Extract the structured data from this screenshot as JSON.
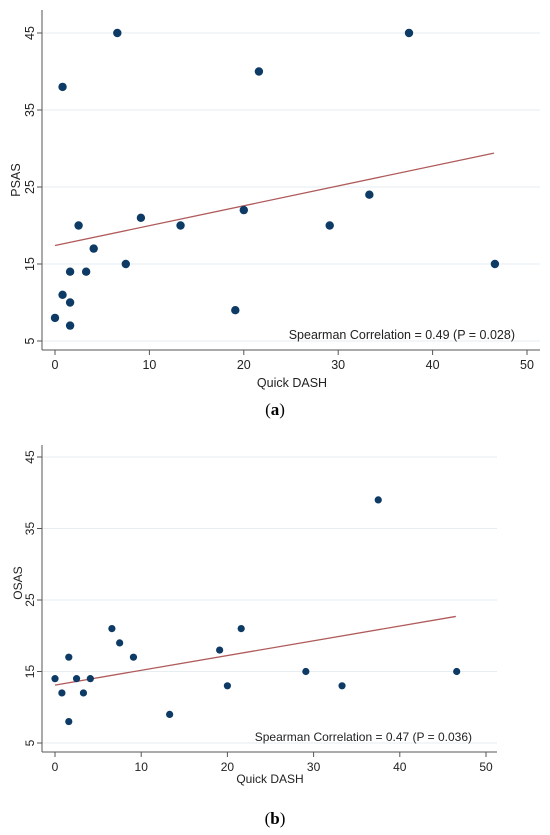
{
  "chart_data": [
    {
      "type": "scatter",
      "xlabel": "Quick DASH",
      "ylabel": "PSAS",
      "panel_label": "a",
      "annotation": "Spearman Correlation = 0.49 (P = 0.028)",
      "xlim": [
        0,
        50
      ],
      "ylim": [
        5,
        45
      ],
      "xticks": [
        "0",
        "10",
        "20",
        "30",
        "40",
        "50"
      ],
      "yticks": [
        "5",
        "15",
        "25",
        "35",
        "45"
      ],
      "grid": true,
      "colors": {
        "points": "#0d3b66",
        "fit": "#b05a5a",
        "grid": "#e6eef1"
      },
      "fit_line": {
        "x": [
          0,
          46.5
        ],
        "y": [
          17.4,
          29.4
        ]
      },
      "points": [
        {
          "x": 0,
          "y": 8
        },
        {
          "x": 0.8,
          "y": 38
        },
        {
          "x": 0.8,
          "y": 11
        },
        {
          "x": 1.6,
          "y": 14
        },
        {
          "x": 1.6,
          "y": 10
        },
        {
          "x": 1.6,
          "y": 7
        },
        {
          "x": 2.5,
          "y": 20
        },
        {
          "x": 3.3,
          "y": 14
        },
        {
          "x": 4.1,
          "y": 17
        },
        {
          "x": 6.6,
          "y": 45
        },
        {
          "x": 7.5,
          "y": 15
        },
        {
          "x": 9.1,
          "y": 21
        },
        {
          "x": 13.3,
          "y": 20
        },
        {
          "x": 19.1,
          "y": 9
        },
        {
          "x": 20,
          "y": 22
        },
        {
          "x": 21.6,
          "y": 40
        },
        {
          "x": 29.1,
          "y": 20
        },
        {
          "x": 33.3,
          "y": 24
        },
        {
          "x": 37.5,
          "y": 45
        },
        {
          "x": 46.6,
          "y": 15
        }
      ]
    },
    {
      "type": "scatter",
      "xlabel": "Quick DASH",
      "ylabel": "OSAS",
      "panel_label": "b",
      "annotation": "Spearman Correlation = 0.47 (P = 0.036)",
      "xlim": [
        0,
        50
      ],
      "ylim": [
        5,
        45
      ],
      "xticks": [
        "0",
        "10",
        "20",
        "30",
        "40",
        "50"
      ],
      "yticks": [
        "5",
        "15",
        "25",
        "35",
        "45"
      ],
      "grid": true,
      "colors": {
        "points": "#0d3b66",
        "fit": "#b05a5a",
        "grid": "#e6eef1"
      },
      "fit_line": {
        "x": [
          0,
          46.5
        ],
        "y": [
          13.1,
          22.7
        ]
      },
      "points": [
        {
          "x": 0,
          "y": 14
        },
        {
          "x": 0.8,
          "y": 12
        },
        {
          "x": 1.6,
          "y": 17
        },
        {
          "x": 1.6,
          "y": 8
        },
        {
          "x": 2.5,
          "y": 14
        },
        {
          "x": 3.3,
          "y": 12
        },
        {
          "x": 4.1,
          "y": 14
        },
        {
          "x": 6.6,
          "y": 21
        },
        {
          "x": 7.5,
          "y": 19
        },
        {
          "x": 9.1,
          "y": 17
        },
        {
          "x": 13.3,
          "y": 9
        },
        {
          "x": 19.1,
          "y": 18
        },
        {
          "x": 20,
          "y": 13
        },
        {
          "x": 21.6,
          "y": 21
        },
        {
          "x": 29.1,
          "y": 15
        },
        {
          "x": 33.3,
          "y": 13
        },
        {
          "x": 37.5,
          "y": 39
        },
        {
          "x": 46.6,
          "y": 15
        }
      ]
    }
  ]
}
